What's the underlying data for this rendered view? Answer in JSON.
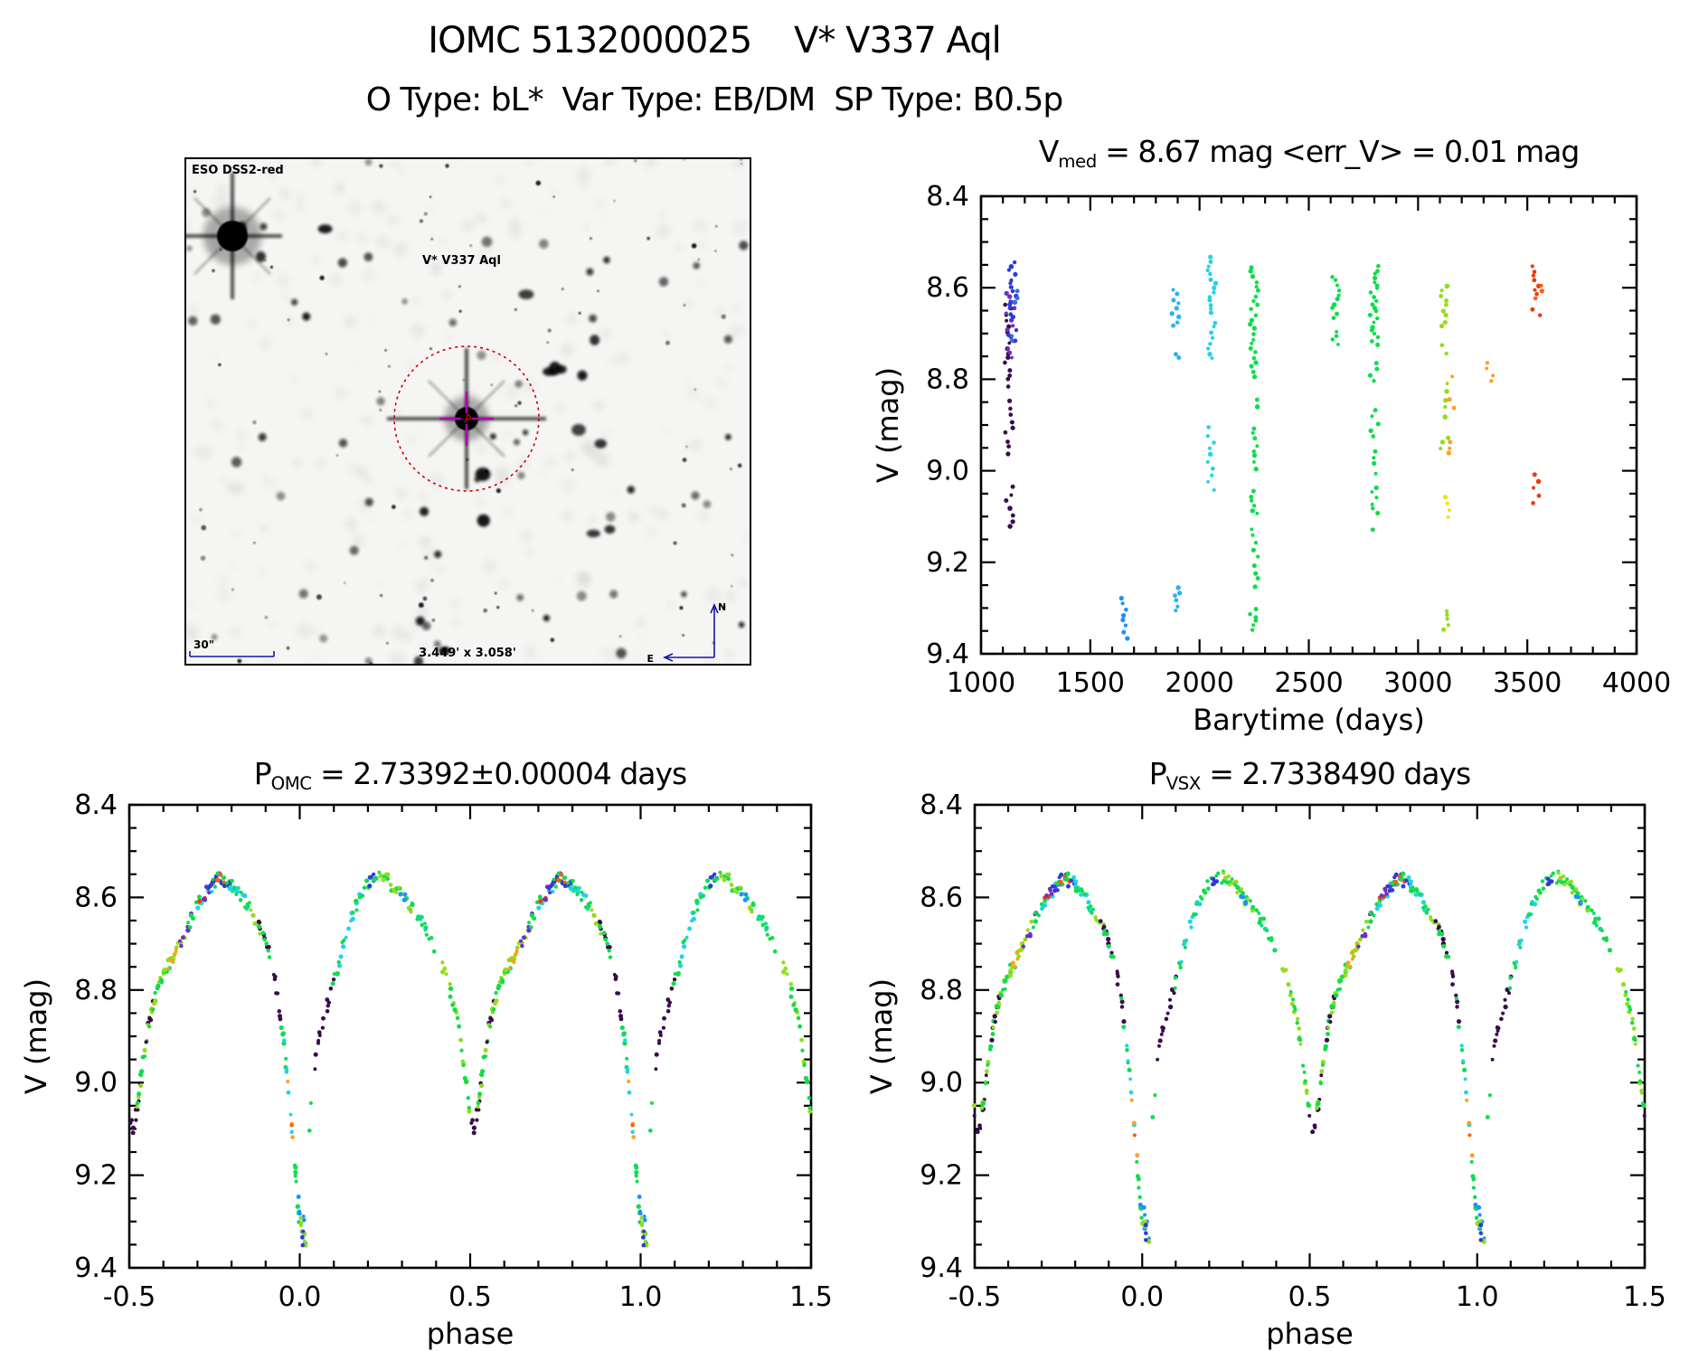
{
  "header": {
    "title": "IOMC 5132000025    V* V337 Aql",
    "subtitle": "O Type: bL*  Var Type: EB/DM  SP Type: B0.5p"
  },
  "finder": {
    "survey_label": "ESO DSS2-red",
    "target_label": "V* V337 Aql",
    "scale_bar_label": "30\"",
    "fov_label": "3.449' x 3.058'",
    "compass_north": "N",
    "compass_east": "E",
    "annotation_color": "#1616a8",
    "target_label_color": "#cc1111",
    "circle_color": "#cc0000",
    "crosshair_color": "#b400b4",
    "star_count": 150,
    "seed": 11
  },
  "palette": [
    {
      "name": "dark-purple",
      "hex": "#3a0b4d"
    },
    {
      "name": "violet",
      "hex": "#6a2fc9"
    },
    {
      "name": "royal-blue",
      "hex": "#2b3cd8"
    },
    {
      "name": "blue",
      "hex": "#3a6ae8"
    },
    {
      "name": "dodger-blue",
      "hex": "#1e90ff"
    },
    {
      "name": "sky-blue",
      "hex": "#2ab3f0"
    },
    {
      "name": "cyan",
      "hex": "#22d3e6"
    },
    {
      "name": "spring-green",
      "hex": "#0cdc8c"
    },
    {
      "name": "green",
      "hex": "#0fdd4d"
    },
    {
      "name": "chartreuse",
      "hex": "#93dd1c"
    },
    {
      "name": "yellow",
      "hex": "#f3e318"
    },
    {
      "name": "orange",
      "hex": "#ffa01e"
    },
    {
      "name": "orange-red",
      "hex": "#ff5a10"
    },
    {
      "name": "red",
      "hex": "#ee3a10"
    }
  ],
  "phase_model": {
    "folded_curve": [
      [
        0.0,
        9.32
      ],
      [
        0.01,
        9.26
      ],
      [
        0.02,
        9.17
      ],
      [
        0.035,
        9.04
      ],
      [
        0.05,
        8.93
      ],
      [
        0.07,
        8.86
      ],
      [
        0.09,
        8.81
      ],
      [
        0.11,
        8.755
      ],
      [
        0.13,
        8.695
      ],
      [
        0.15,
        8.645
      ],
      [
        0.175,
        8.6
      ],
      [
        0.2,
        8.572
      ],
      [
        0.225,
        8.556
      ],
      [
        0.25,
        8.558
      ],
      [
        0.275,
        8.575
      ],
      [
        0.3,
        8.598
      ],
      [
        0.33,
        8.625
      ],
      [
        0.36,
        8.655
      ],
      [
        0.39,
        8.695
      ],
      [
        0.42,
        8.748
      ],
      [
        0.445,
        8.81
      ],
      [
        0.465,
        8.878
      ],
      [
        0.48,
        8.955
      ],
      [
        0.495,
        9.045
      ],
      [
        0.51,
        9.105
      ],
      [
        0.525,
        9.05
      ],
      [
        0.54,
        8.955
      ],
      [
        0.555,
        8.885
      ],
      [
        0.57,
        8.83
      ],
      [
        0.59,
        8.787
      ],
      [
        0.615,
        8.747
      ],
      [
        0.64,
        8.71
      ],
      [
        0.665,
        8.672
      ],
      [
        0.69,
        8.633
      ],
      [
        0.715,
        8.6
      ],
      [
        0.74,
        8.576
      ],
      [
        0.765,
        8.558
      ],
      [
        0.79,
        8.565
      ],
      [
        0.815,
        8.585
      ],
      [
        0.84,
        8.61
      ],
      [
        0.865,
        8.64
      ],
      [
        0.885,
        8.668
      ],
      [
        0.905,
        8.708
      ],
      [
        0.925,
        8.768
      ],
      [
        0.94,
        8.838
      ],
      [
        0.955,
        8.925
      ],
      [
        0.97,
        9.04
      ],
      [
        0.985,
        9.17
      ],
      [
        1.0,
        9.32
      ]
    ],
    "segments": [
      [
        0.5,
        0.535,
        0,
        9
      ],
      [
        0.515,
        0.545,
        9,
        5
      ],
      [
        0.52,
        0.56,
        8,
        8
      ],
      [
        0.545,
        0.575,
        0,
        7
      ],
      [
        0.555,
        0.6,
        9,
        8
      ],
      [
        0.56,
        0.62,
        8,
        10
      ],
      [
        0.6,
        0.635,
        9,
        6
      ],
      [
        0.615,
        0.645,
        11,
        6
      ],
      [
        0.63,
        0.67,
        9,
        7
      ],
      [
        0.645,
        0.685,
        1,
        6
      ],
      [
        0.67,
        0.71,
        8,
        7
      ],
      [
        0.7,
        0.745,
        6,
        8
      ],
      [
        0.705,
        0.73,
        13,
        3
      ],
      [
        0.71,
        0.75,
        1,
        6
      ],
      [
        0.73,
        0.775,
        2,
        8
      ],
      [
        0.745,
        0.81,
        8,
        12
      ],
      [
        0.755,
        0.785,
        12,
        3
      ],
      [
        0.78,
        0.8,
        2,
        3
      ],
      [
        0.79,
        0.845,
        6,
        9
      ],
      [
        0.8,
        0.86,
        8,
        9
      ],
      [
        0.855,
        0.885,
        9,
        5
      ],
      [
        0.875,
        0.91,
        0,
        7
      ],
      [
        0.88,
        0.915,
        8,
        6
      ],
      [
        0.92,
        0.945,
        0,
        8
      ],
      [
        0.94,
        0.965,
        8,
        6
      ],
      [
        0.955,
        0.98,
        6,
        6
      ],
      [
        0.965,
        0.985,
        11,
        3
      ],
      [
        0.972,
        0.976,
        12,
        1
      ],
      [
        0.985,
        0.999,
        8,
        9
      ],
      [
        0.998,
        1.018,
        4,
        8,
        9.25,
        9.35
      ],
      [
        1.0,
        1.02,
        9,
        7,
        9.29,
        9.35
      ],
      [
        1.005,
        1.015,
        2,
        3,
        9.31,
        9.35
      ],
      [
        0.025,
        0.04,
        8,
        2
      ],
      [
        0.045,
        0.065,
        0,
        7
      ],
      [
        0.07,
        0.1,
        0,
        7
      ],
      [
        0.095,
        0.135,
        8,
        8
      ],
      [
        0.115,
        0.175,
        6,
        10
      ],
      [
        0.155,
        0.21,
        8,
        9
      ],
      [
        0.205,
        0.225,
        2,
        6
      ],
      [
        0.22,
        0.33,
        8,
        18
      ],
      [
        0.235,
        0.33,
        9,
        12
      ],
      [
        0.29,
        0.315,
        4,
        4
      ],
      [
        0.33,
        0.4,
        8,
        10
      ],
      [
        0.345,
        0.375,
        7,
        4
      ],
      [
        0.415,
        0.5,
        9,
        16
      ],
      [
        0.44,
        0.5,
        8,
        12
      ]
    ]
  },
  "chart_data": [
    {
      "id": "barytime",
      "type": "scatter",
      "title": "V_med = 8.67 mag <err_V> = 0.01 mag",
      "title_parts": {
        "pre": "V",
        "sub": "med",
        "post": " = 8.67 mag <err_V> = 0.01 mag"
      },
      "xlabel": "Barytime (days)",
      "ylabel": "V (mag)",
      "xlim": [
        1000,
        4000
      ],
      "ylim": [
        8.4,
        9.4
      ],
      "y_axis_direction": "inverted-magnitude-top-bright",
      "xticks": [
        1000,
        1500,
        2000,
        2500,
        3000,
        3500,
        4000
      ],
      "xtick_labels": [
        "1000",
        "1500",
        "2000",
        "2500",
        "3000",
        "3500",
        "4000"
      ],
      "yticks": [
        8.4,
        8.6,
        8.8,
        9.0,
        9.2,
        9.4
      ],
      "ytick_labels": [
        "8.4",
        "8.6",
        "8.8",
        "9.0",
        "9.2",
        "9.4"
      ],
      "x_minor": 100,
      "y_minor": 0.05,
      "grid": false,
      "seed": 3,
      "clusters": [
        {
          "t": 1128,
          "color": 0,
          "spans": [
            [
              8.63,
              8.82,
              16
            ],
            [
              8.84,
              8.97,
              9
            ],
            [
              9.03,
              9.13,
              7
            ]
          ]
        },
        {
          "t": 1134,
          "color": 1,
          "spans": [
            [
              8.58,
              8.76,
              15
            ]
          ]
        },
        {
          "t": 1143,
          "color": 2,
          "spans": [
            [
              8.54,
              8.67,
              14
            ],
            [
              8.69,
              8.72,
              3
            ]
          ]
        },
        {
          "t": 1152,
          "color": 3,
          "spans": [
            [
              8.6,
              8.64,
              3
            ],
            [
              8.7,
              8.72,
              2
            ]
          ]
        },
        {
          "t": 1655,
          "color": 4,
          "spans": [
            [
              9.27,
              9.37,
              8
            ]
          ]
        },
        {
          "t": 1890,
          "color": 5,
          "spans": [
            [
              8.6,
              8.69,
              9
            ],
            [
              8.74,
              8.76,
              2
            ],
            [
              9.25,
              9.31,
              6
            ]
          ]
        },
        {
          "t": 2055,
          "color": 6,
          "spans": [
            [
              8.53,
              8.66,
              14
            ],
            [
              8.67,
              8.76,
              8
            ],
            [
              8.9,
              9.05,
              10
            ]
          ]
        },
        {
          "t": 2250,
          "color": 8,
          "spans": [
            [
              8.55,
              8.8,
              24
            ],
            [
              8.84,
              8.87,
              2
            ],
            [
              8.9,
              9.0,
              8
            ],
            [
              9.04,
              9.1,
              6
            ],
            [
              9.12,
              9.26,
              9
            ],
            [
              9.3,
              9.35,
              6
            ]
          ]
        },
        {
          "t": 2620,
          "color": 8,
          "spans": [
            [
              8.57,
              8.67,
              10
            ],
            [
              8.69,
              8.73,
              4
            ]
          ]
        },
        {
          "t": 2800,
          "color": 8,
          "spans": [
            [
              8.55,
              8.73,
              22
            ],
            [
              8.76,
              8.81,
              4
            ],
            [
              8.86,
              8.93,
              5
            ],
            [
              8.95,
              9.01,
              4
            ],
            [
              9.03,
              9.1,
              6
            ],
            [
              9.12,
              9.14,
              1
            ]
          ]
        },
        {
          "t": 3120,
          "color": 9,
          "spans": [
            [
              8.59,
              8.69,
              9
            ],
            [
              8.72,
              8.75,
              2
            ],
            [
              8.8,
              8.89,
              5
            ],
            [
              8.92,
              8.96,
              3
            ],
            [
              9.3,
              9.35,
              5
            ]
          ]
        },
        {
          "t": 3138,
          "color": 10,
          "spans": [
            [
              9.05,
              9.11,
              4
            ]
          ]
        },
        {
          "t": 3155,
          "color": 11,
          "spans": [
            [
              8.78,
              8.8,
              1
            ],
            [
              8.84,
              8.87,
              2
            ],
            [
              8.93,
              8.97,
              3
            ]
          ]
        },
        {
          "t": 3330,
          "color": 11,
          "spans": [
            [
              8.76,
              8.81,
              4
            ]
          ]
        },
        {
          "t": 3540,
          "color": 13,
          "spans": [
            [
              8.55,
              8.62,
              7
            ],
            [
              8.64,
              8.67,
              2
            ],
            [
              9.0,
              9.08,
              5
            ]
          ]
        },
        {
          "t": 3552,
          "color": 12,
          "spans": [
            [
              8.59,
              8.63,
              3
            ]
          ]
        }
      ]
    },
    {
      "id": "phase_omc",
      "type": "scatter",
      "title": "P_OMC = 2.73392±0.00004 days",
      "title_parts": {
        "pre": "P",
        "sub": "OMC",
        "post": " = 2.73392±0.00004 days"
      },
      "xlabel": "phase",
      "ylabel": "V (mag)",
      "xlim": [
        -0.5,
        1.5
      ],
      "ylim": [
        8.4,
        9.4
      ],
      "xticks": [
        -0.5,
        0.0,
        0.5,
        1.0,
        1.5
      ],
      "xtick_labels": [
        "-0.5",
        "0.0",
        "0.5",
        "1.0",
        "1.5"
      ],
      "yticks": [
        8.4,
        8.6,
        8.8,
        9.0,
        9.2,
        9.4
      ],
      "ytick_labels": [
        "8.4",
        "8.6",
        "8.8",
        "9.0",
        "9.2",
        "9.4"
      ],
      "x_minor": 0.1,
      "y_minor": 0.05,
      "grid": false,
      "seed": 5,
      "model": "phase_model"
    },
    {
      "id": "phase_vsx",
      "type": "scatter",
      "title": "P_VSX = 2.7338490 days",
      "title_parts": {
        "pre": "P",
        "sub": "VSX",
        "post": " = 2.7338490 days"
      },
      "xlabel": "phase",
      "ylabel": "V (mag)",
      "xlim": [
        -0.5,
        1.5
      ],
      "xticks": [
        -0.5,
        0.0,
        0.5,
        1.0,
        1.5
      ],
      "xtick_labels": [
        "-0.5",
        "0.0",
        "0.5",
        "1.0",
        "1.5"
      ],
      "ylim": [
        8.4,
        9.4
      ],
      "yticks": [
        8.4,
        8.6,
        8.8,
        9.0,
        9.2,
        9.4
      ],
      "ytick_labels": [
        "8.4",
        "8.6",
        "8.8",
        "9.0",
        "9.2",
        "9.4"
      ],
      "x_minor": 0.1,
      "y_minor": 0.05,
      "grid": false,
      "seed": 9,
      "model": "phase_model"
    }
  ]
}
